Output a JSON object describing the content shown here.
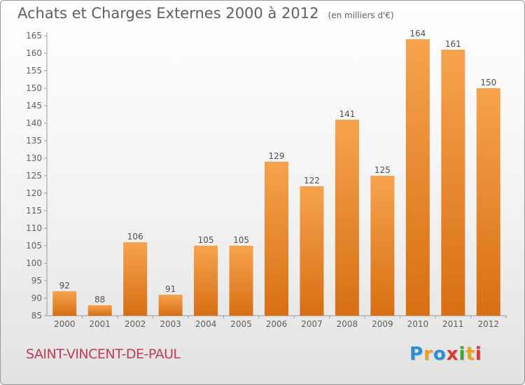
{
  "title": "Achats et Charges Externes 2000 à 2012",
  "unit": "(en milliers d'€)",
  "commune": "SAINT-VINCENT-DE-PAUL",
  "logo": {
    "letters": [
      "P",
      "r",
      "o",
      "x",
      "i",
      "t",
      "i"
    ],
    "colors": [
      "#2a8fd6",
      "#e8a21c",
      "#2a8fd6",
      "#d93a2b",
      "#3aa537",
      "#e8a21c",
      "#d93a2b"
    ]
  },
  "colors": {
    "bar_top": "#f6a34e",
    "bar_bottom": "#d86f12",
    "text": "#606060",
    "commune": "#c23a5c"
  },
  "chart_data": {
    "type": "bar",
    "categories": [
      "2000",
      "2001",
      "2002",
      "2003",
      "2004",
      "2005",
      "2006",
      "2007",
      "2008",
      "2009",
      "2010",
      "2011",
      "2012"
    ],
    "values": [
      92,
      88,
      106,
      91,
      105,
      105,
      129,
      122,
      141,
      125,
      164,
      161,
      150
    ],
    "ylim": [
      85,
      165
    ],
    "yticks": [
      85,
      90,
      95,
      100,
      105,
      110,
      115,
      120,
      125,
      130,
      135,
      140,
      145,
      150,
      155,
      160,
      165
    ],
    "grid": false,
    "legend": "none"
  }
}
